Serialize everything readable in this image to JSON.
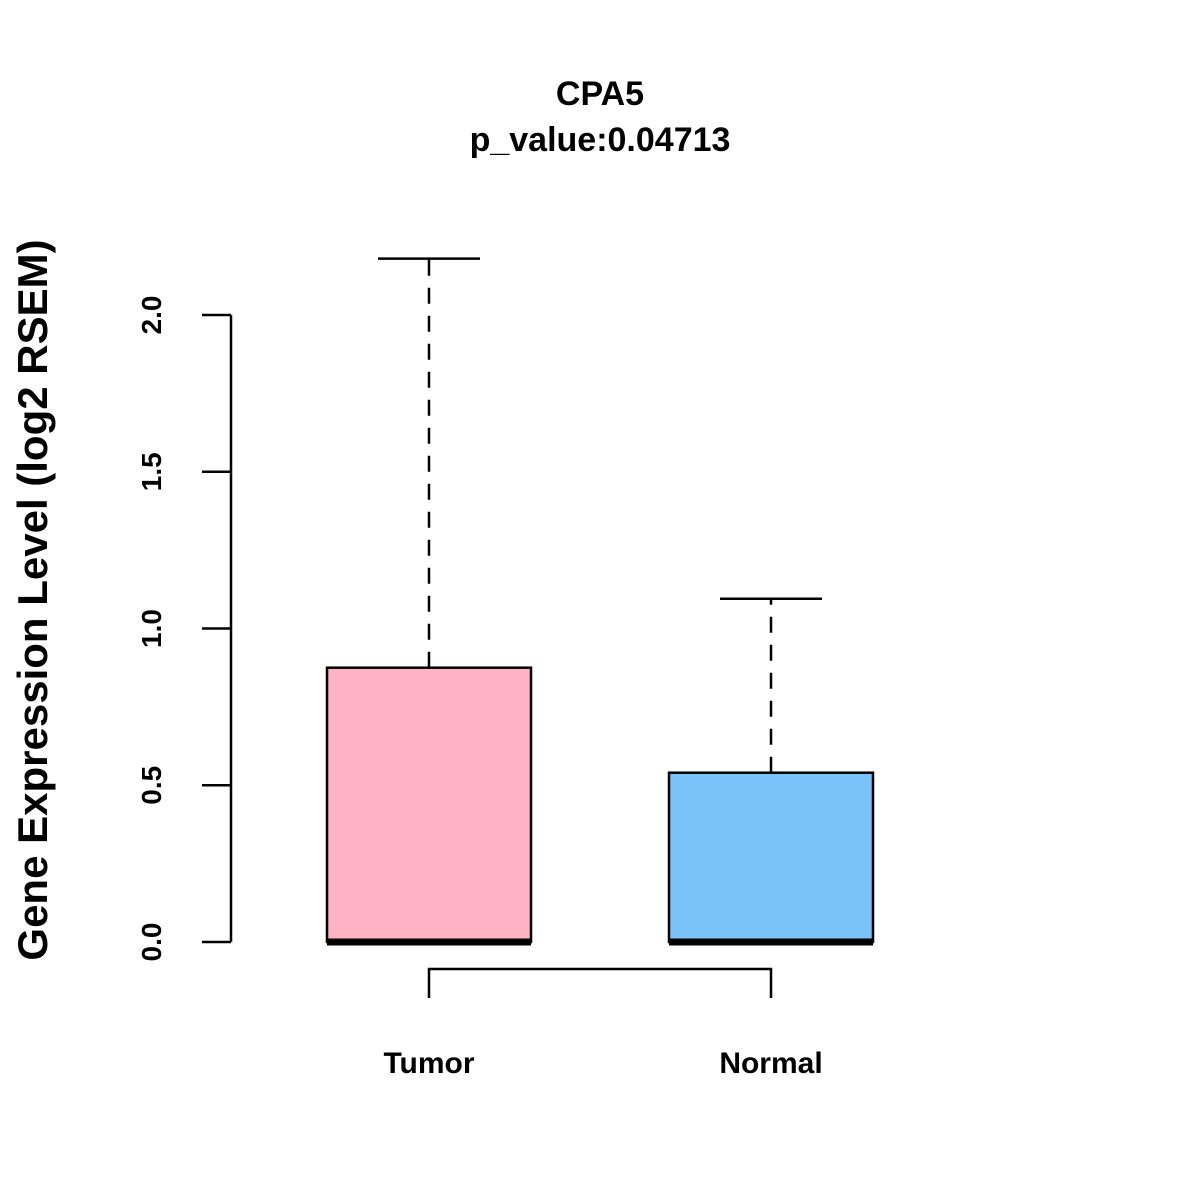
{
  "chart_data": {
    "type": "box",
    "title": "CPA5",
    "subtitle": "p_value:0.04713",
    "xlabel": "",
    "ylabel": "Gene Expression Level (log2 RSEM)",
    "ylim": [
      0,
      2.0
    ],
    "yticks": [
      {
        "value": 0.0,
        "label": "0.0"
      },
      {
        "value": 0.5,
        "label": "0.5"
      },
      {
        "value": 1.0,
        "label": "1.0"
      },
      {
        "value": 1.5,
        "label": "1.5"
      },
      {
        "value": 2.0,
        "label": "2.0"
      }
    ],
    "categories": [
      "Tumor",
      "Normal"
    ],
    "boxes": [
      {
        "name": "Tumor",
        "min": 0.0,
        "q1": 0.0,
        "median": 0.0,
        "q3": 0.875,
        "max": 2.18,
        "color": "#FFB2C3"
      },
      {
        "name": "Normal",
        "min": 0.0,
        "q1": 0.0,
        "median": 0.0,
        "q3": 0.54,
        "max": 1.095,
        "color": "#7AC2F8"
      }
    ],
    "comparison_bracket": [
      "Tumor",
      "Normal"
    ],
    "grid": false
  }
}
